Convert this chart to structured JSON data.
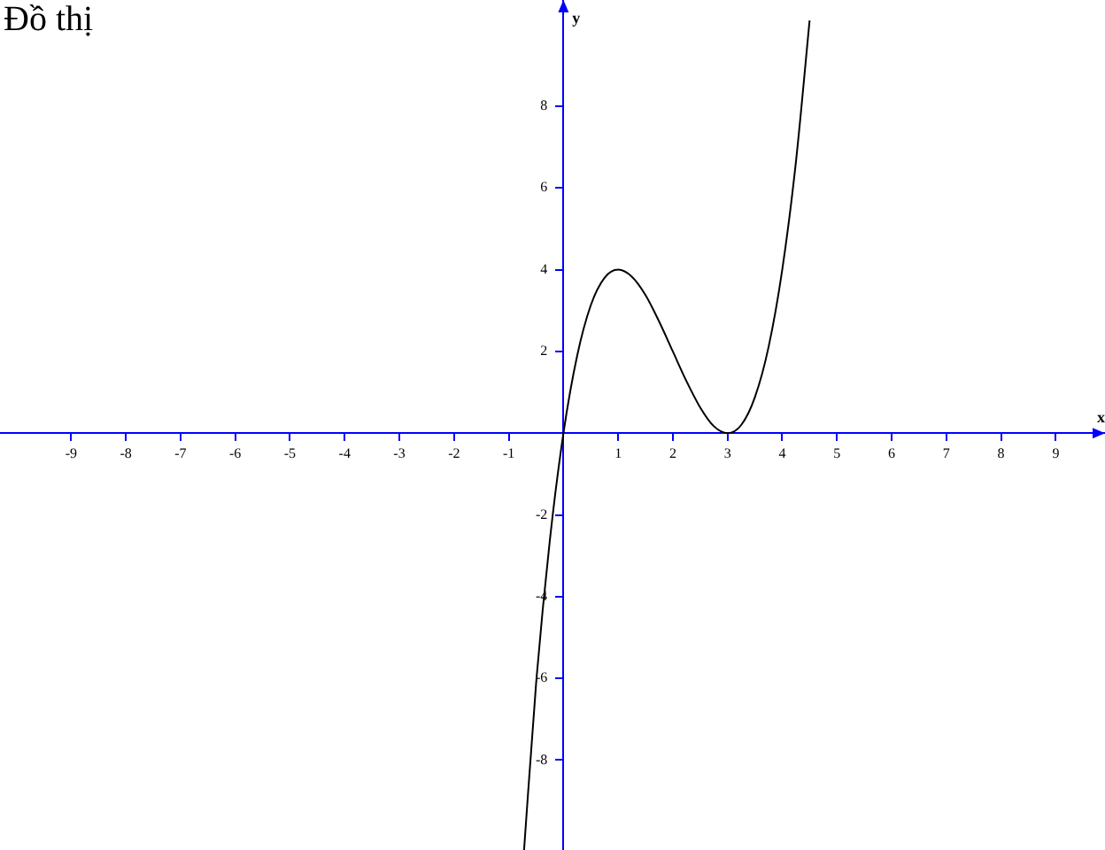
{
  "chart_data": {
    "type": "line",
    "title": "Đồ thị",
    "xlabel": "x",
    "ylabel": "y",
    "x": [
      -0.72,
      -0.5,
      -0.25,
      0,
      0.25,
      0.5,
      0.75,
      1,
      1.25,
      1.5,
      1.75,
      2,
      2.25,
      2.5,
      2.75,
      3,
      3.25,
      3.5,
      3.75,
      4,
      4.25,
      4.5
    ],
    "series": [
      {
        "color": "#000000",
        "values": [
          -10.2,
          -6.13,
          -2.64,
          0,
          1.89,
          3.13,
          3.8,
          4,
          3.83,
          3.38,
          2.73,
          2,
          1.27,
          0.63,
          0.17,
          0,
          0.2,
          0.88,
          2.11,
          4,
          6.64,
          10.1
        ]
      }
    ],
    "xlim": [
      -10.3,
      9.9
    ],
    "ylim": [
      -10.2,
      10.6
    ],
    "xticks": [
      -9,
      -8,
      -7,
      -6,
      -5,
      -4,
      -3,
      -2,
      -1,
      1,
      2,
      3,
      4,
      5,
      6,
      7,
      8,
      9
    ],
    "yticks": [
      -8,
      -6,
      -4,
      -2,
      2,
      4,
      6,
      8
    ],
    "grid": false,
    "legend": false,
    "marker": "none",
    "line_style": "solid"
  }
}
